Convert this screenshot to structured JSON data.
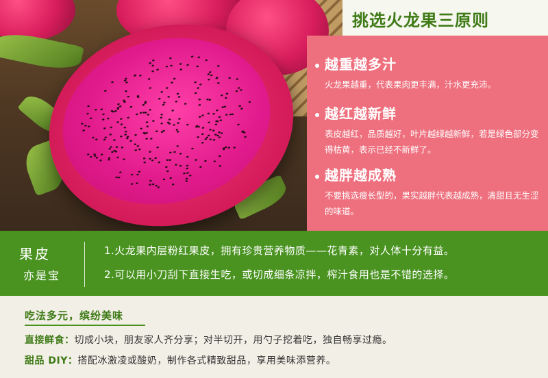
{
  "header": {
    "title": "挑选火龙果三原则"
  },
  "principles": [
    {
      "title": "越重越多汁",
      "body": "火龙果越重，代表果肉更丰满，汁水更充沛。"
    },
    {
      "title": "越红越新鲜",
      "body": "表皮越红，品质越好，叶片越绿越新鲜，若是绿色部分变得枯黄，表示已经不新鲜了。"
    },
    {
      "title": "越胖越成熟",
      "body": "不要挑选瘦长型的，果实越胖代表越成熟，清甜且无生涩的味道。"
    }
  ],
  "peel": {
    "title": "果皮",
    "subtitle": "亦是宝",
    "lines": [
      "1.火龙果内层粉红果皮，拥有珍贵营养物质——花青素，对人体十分有益。",
      "2.可以用小刀刮下直接生吃，或切成细条凉拌，榨汁食用也是不错的选择。"
    ]
  },
  "eat": {
    "heading": "吃法多元，缤纷美味",
    "rows": [
      {
        "label": "直接鲜食：",
        "text": "切成小块，朋友家人齐分享；对半切开，用勺子挖着吃，独自畅享过瘾。"
      },
      {
        "label": "甜品 DIY：",
        "text": "搭配冰激凌或酸奶，制作各式精致甜品，享用美味添营养。"
      }
    ]
  },
  "colors": {
    "green": "#4a9321",
    "pink": "#ee6f7d",
    "title_green": "#3e7a15"
  }
}
